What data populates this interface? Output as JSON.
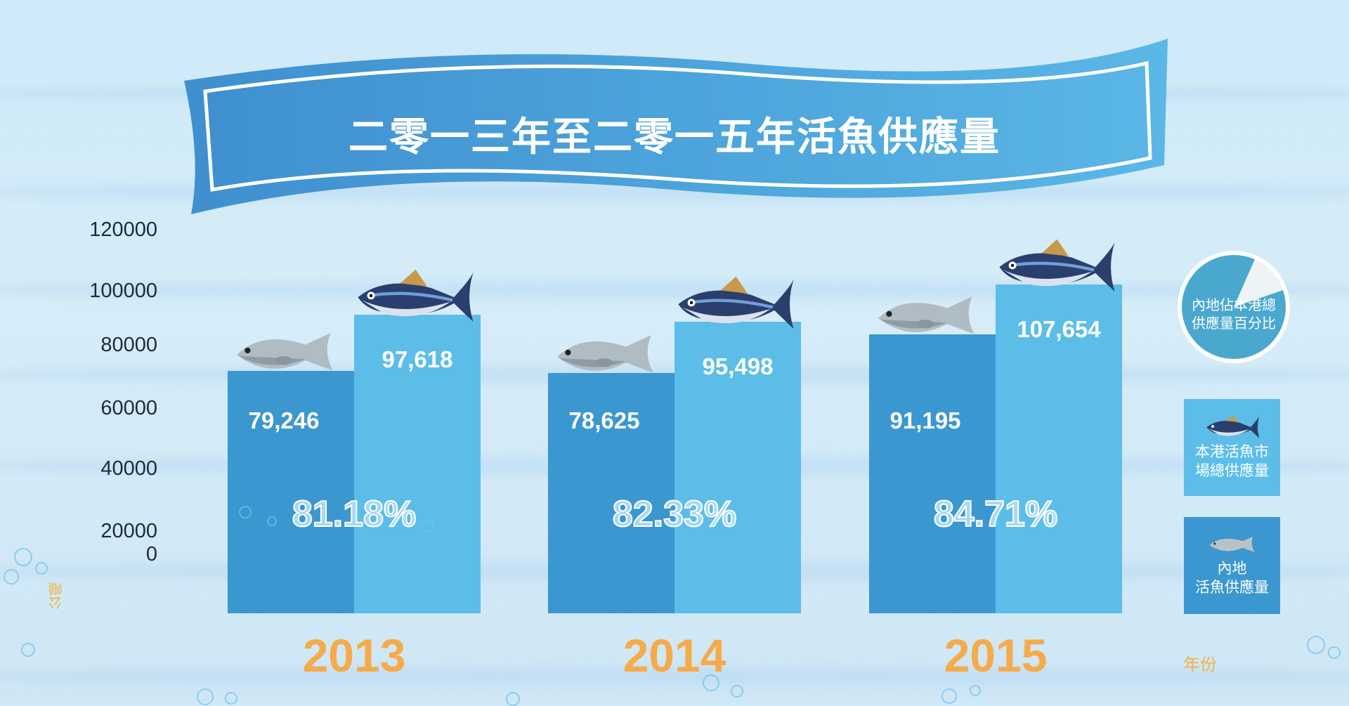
{
  "title": "二零一三年至二零一五年活魚供應量",
  "colors": {
    "mainland_bar": "#3b97d0",
    "total_bar": "#5cbde9",
    "year_label": "#f6ab4a",
    "title_banner": "#4a9fd8",
    "background": "#d2e9f7"
  },
  "chart_data": {
    "type": "bar",
    "title": "二零一三年至二零一五年活魚供應量",
    "ylabel": "公噸",
    "xlabel": "年份",
    "yticks": [
      "0",
      "20000",
      "40000",
      "60000",
      "80000",
      "100000",
      "120000"
    ],
    "ylim": [
      0,
      120000
    ],
    "grid": false,
    "legend_placement": "right",
    "categories": [
      "2013",
      "2014",
      "2015"
    ],
    "series": [
      {
        "name": "內地活魚供應量",
        "key": "mainland",
        "values": [
          79246,
          78625,
          91195
        ],
        "labels": [
          "79,246",
          "78,625",
          "91,195"
        ],
        "icon": "grey-fish-icon"
      },
      {
        "name": "本港活魚市場總供應量",
        "key": "total",
        "values": [
          97618,
          95498,
          107654
        ],
        "labels": [
          "97,618",
          "95,498",
          "107,654"
        ],
        "icon": "tuna-icon"
      }
    ],
    "percentages": {
      "name": "內地佔本港總供應量百分比",
      "values": [
        81.18,
        82.33,
        84.71
      ],
      "labels": [
        "81.18%",
        "82.33%",
        "84.71%"
      ]
    }
  },
  "legend": {
    "pie_label_line1": "內地佔本港總",
    "pie_label_line2": "供應量百分比",
    "total_line1": "本港活魚市",
    "total_line2": "場總供應量",
    "mainland_line1": "內地",
    "mainland_line2": "活魚供應量"
  }
}
